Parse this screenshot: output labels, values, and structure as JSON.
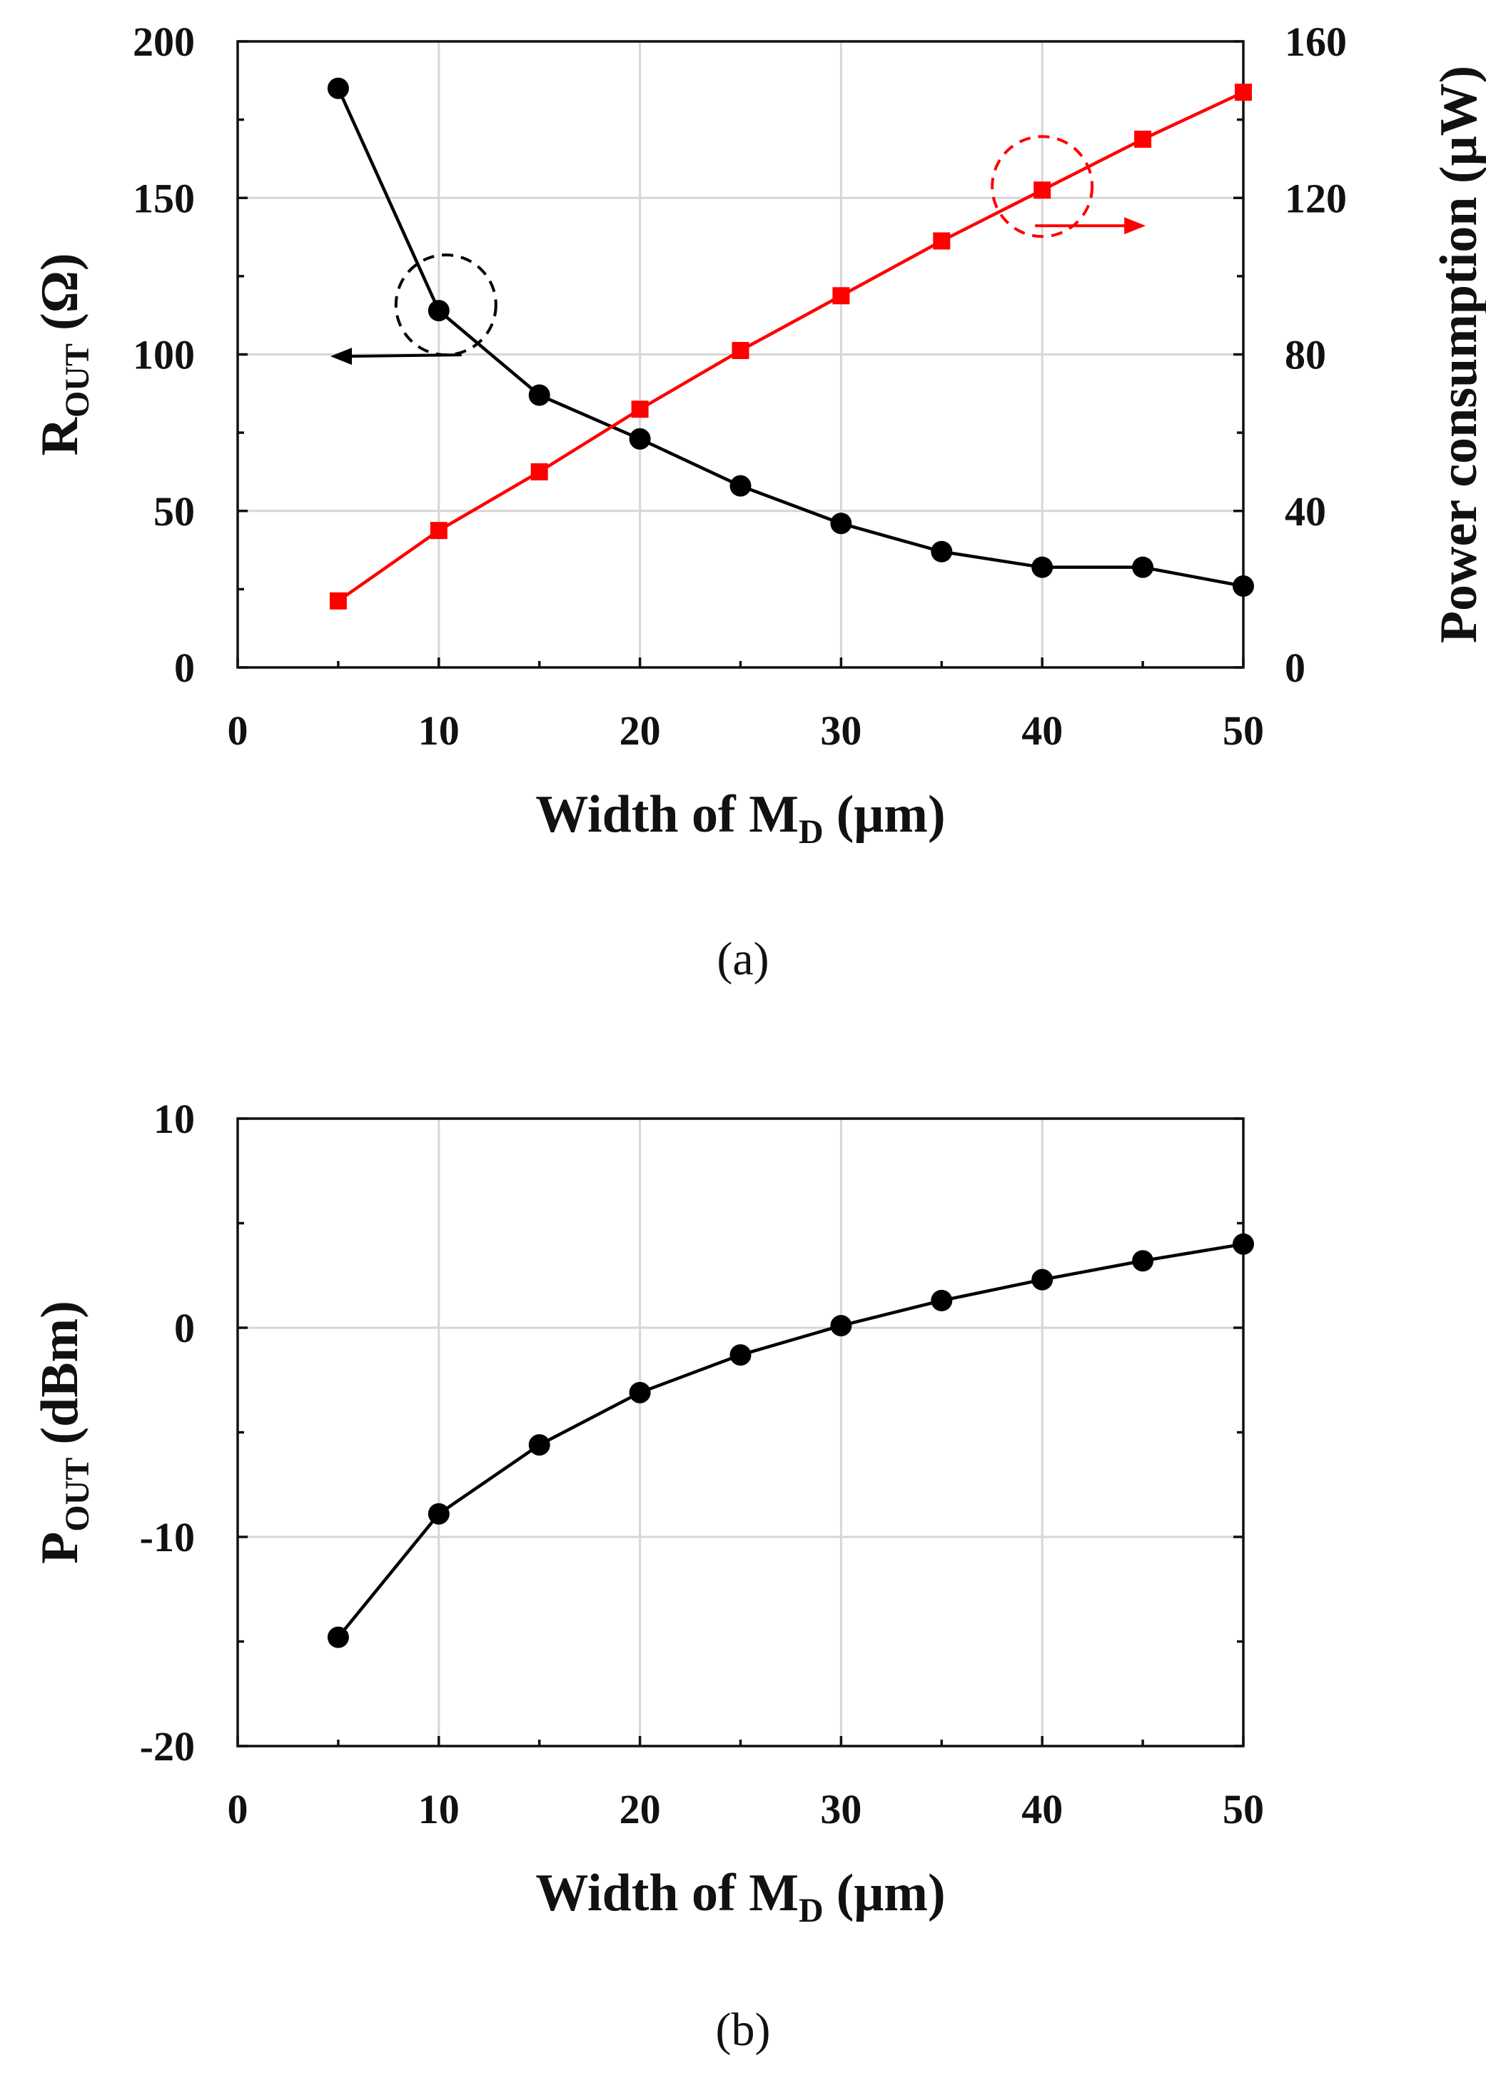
{
  "colors": {
    "black_series": "#000000",
    "red_series": "#ff0000"
  },
  "chart_data": [
    {
      "panel": "a",
      "type": "line",
      "caption": "(a)",
      "xlabel": {
        "main": "Width of M",
        "sub": "D",
        "unit": "(μm)"
      },
      "ylabel_left": {
        "main": "R",
        "sub": "OUT",
        "unit": "(Ω)"
      },
      "ylabel_right": "Power consumption (μW)",
      "xlim": [
        0,
        50
      ],
      "x_ticks": [
        0,
        10,
        20,
        30,
        40,
        50
      ],
      "ylim_left": [
        0,
        200
      ],
      "y_ticks_left": [
        0,
        50,
        100,
        150,
        200
      ],
      "ylim_right": [
        0,
        160
      ],
      "y_ticks_right": [
        0,
        40,
        80,
        120,
        160
      ],
      "grid": true,
      "series": [
        {
          "name": "R_OUT",
          "axis": "left",
          "marker": "circle",
          "color": "#000000",
          "x": [
            5,
            10,
            15,
            20,
            25,
            30,
            35,
            40,
            45,
            50
          ],
          "values": [
            185,
            114,
            87,
            73,
            58,
            46,
            37,
            32,
            32,
            26
          ]
        },
        {
          "name": "Power consumption",
          "axis": "right",
          "marker": "square",
          "color": "#ff0000",
          "x": [
            5,
            10,
            15,
            20,
            25,
            30,
            35,
            40,
            45,
            50
          ],
          "values": [
            17,
            35,
            50,
            66,
            81,
            95,
            109,
            122,
            135,
            147
          ]
        }
      ],
      "annotations": [
        {
          "type": "dashed-circle",
          "series": "R_OUT",
          "at_x": 10,
          "arrow": "left",
          "color": "#000000"
        },
        {
          "type": "dashed-circle",
          "series": "Power consumption",
          "at_x": 40,
          "arrow": "right",
          "color": "#ff0000"
        }
      ]
    },
    {
      "panel": "b",
      "type": "line",
      "caption": "(b)",
      "xlabel": {
        "main": "Width of M",
        "sub": "D",
        "unit": "(μm)"
      },
      "ylabel_left": {
        "main": "P",
        "sub": "OUT",
        "unit": "(dBm)"
      },
      "xlim": [
        0,
        50
      ],
      "x_ticks": [
        0,
        10,
        20,
        30,
        40,
        50
      ],
      "ylim_left": [
        -20,
        10
      ],
      "y_ticks_left": [
        -20,
        -10,
        0,
        10
      ],
      "grid": true,
      "series": [
        {
          "name": "P_OUT",
          "axis": "left",
          "marker": "circle",
          "color": "#000000",
          "x": [
            5,
            10,
            15,
            20,
            25,
            30,
            35,
            40,
            45,
            50
          ],
          "values": [
            -14.8,
            -8.9,
            -5.6,
            -3.1,
            -1.3,
            0.1,
            1.3,
            2.3,
            3.2,
            4.0
          ]
        }
      ]
    }
  ]
}
